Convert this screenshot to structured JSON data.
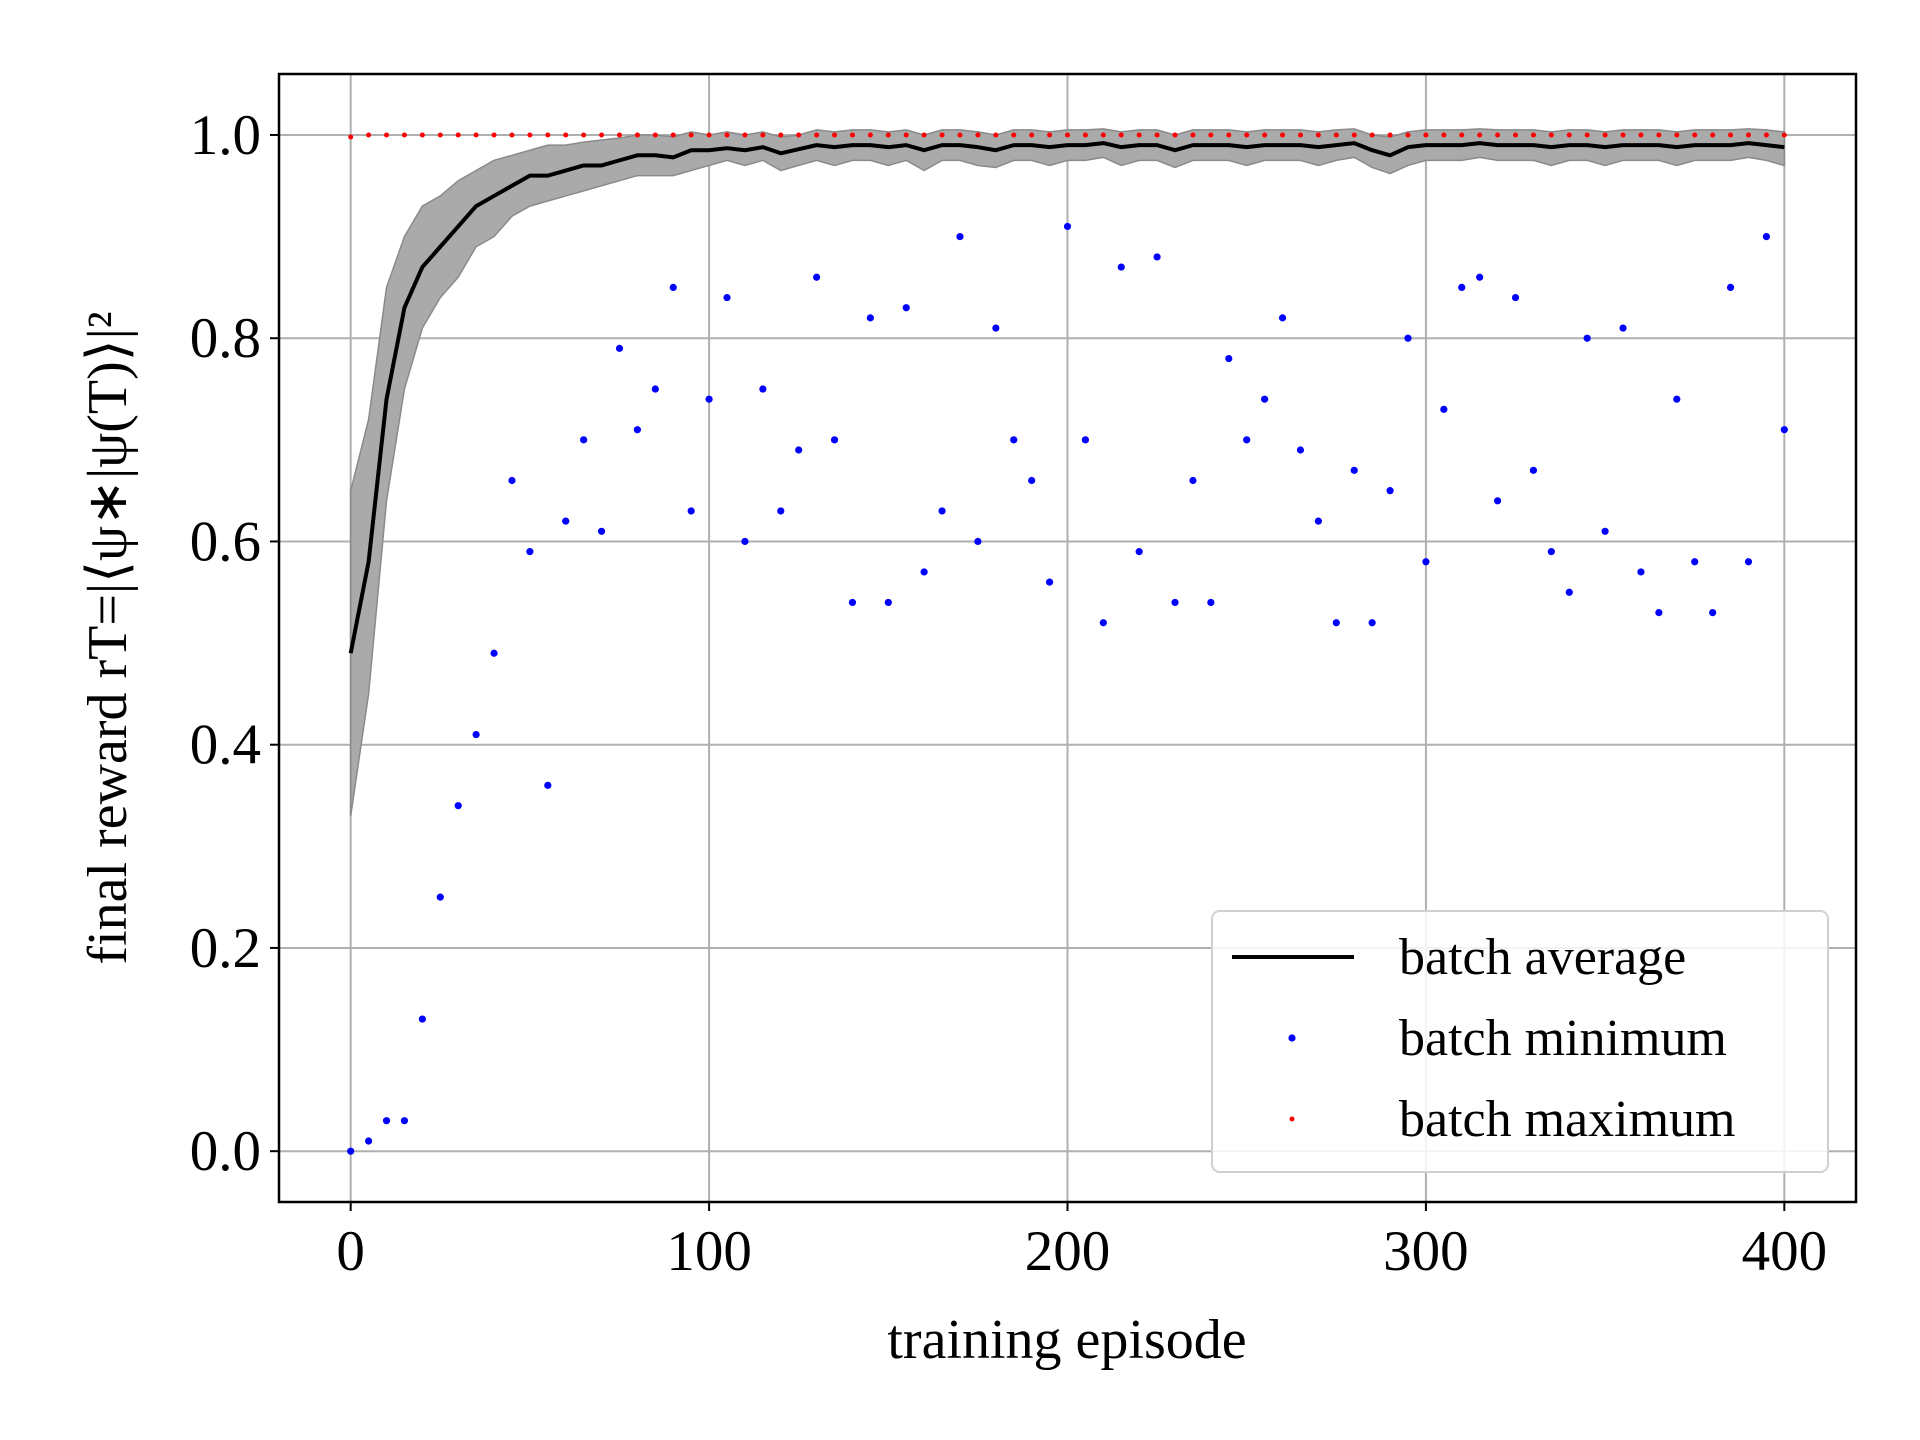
{
  "chart_data": {
    "type": "line",
    "xlabel": "training episode",
    "ylabel": "final reward rT=|⟨ψ∗|ψ(T)⟩|²",
    "xlim": [
      -20,
      420
    ],
    "ylim": [
      -0.05,
      1.06
    ],
    "xticks": [
      0,
      100,
      200,
      300,
      400
    ],
    "yticks": [
      {
        "value": 0,
        "label": "0.0"
      },
      0.2,
      0.4,
      0.6,
      0.8,
      {
        "value": 1,
        "label": "1.0"
      }
    ],
    "grid": true,
    "legend": "lower right",
    "x": [
      0,
      5,
      10,
      15,
      20,
      25,
      30,
      35,
      40,
      45,
      50,
      55,
      60,
      65,
      70,
      75,
      80,
      85,
      90,
      95,
      100,
      105,
      110,
      115,
      120,
      125,
      130,
      135,
      140,
      145,
      150,
      155,
      160,
      165,
      170,
      175,
      180,
      185,
      190,
      195,
      200,
      205,
      210,
      215,
      220,
      225,
      230,
      235,
      240,
      245,
      250,
      255,
      260,
      265,
      270,
      275,
      280,
      285,
      290,
      295,
      300,
      305,
      310,
      315,
      320,
      325,
      330,
      335,
      340,
      345,
      350,
      355,
      360,
      365,
      370,
      375,
      380,
      385,
      390,
      395,
      400
    ],
    "series": [
      {
        "name": "batch average",
        "color": "#000000",
        "values": [
          0.49,
          0.58,
          0.74,
          0.83,
          0.87,
          0.89,
          0.91,
          0.93,
          0.94,
          0.95,
          0.96,
          0.96,
          0.965,
          0.97,
          0.97,
          0.975,
          0.98,
          0.98,
          0.978,
          0.985,
          0.985,
          0.987,
          0.985,
          0.988,
          0.982,
          0.986,
          0.99,
          0.988,
          0.99,
          0.99,
          0.988,
          0.99,
          0.985,
          0.99,
          0.99,
          0.988,
          0.985,
          0.99,
          0.99,
          0.988,
          0.99,
          0.99,
          0.992,
          0.988,
          0.99,
          0.99,
          0.985,
          0.99,
          0.99,
          0.99,
          0.988,
          0.99,
          0.99,
          0.99,
          0.988,
          0.99,
          0.992,
          0.985,
          0.98,
          0.988,
          0.99,
          0.99,
          0.99,
          0.992,
          0.99,
          0.99,
          0.99,
          0.988,
          0.99,
          0.99,
          0.988,
          0.99,
          0.99,
          0.99,
          0.988,
          0.99,
          0.99,
          0.99,
          0.992,
          0.99,
          0.988
        ],
        "band_color": "#aaaaaa",
        "lower": [
          0.33,
          0.45,
          0.64,
          0.75,
          0.81,
          0.84,
          0.86,
          0.89,
          0.9,
          0.92,
          0.93,
          0.935,
          0.94,
          0.945,
          0.95,
          0.955,
          0.96,
          0.96,
          0.96,
          0.965,
          0.97,
          0.975,
          0.97,
          0.975,
          0.965,
          0.97,
          0.975,
          0.97,
          0.975,
          0.975,
          0.97,
          0.975,
          0.965,
          0.975,
          0.975,
          0.97,
          0.968,
          0.975,
          0.975,
          0.97,
          0.975,
          0.975,
          0.978,
          0.97,
          0.975,
          0.975,
          0.968,
          0.975,
          0.975,
          0.975,
          0.97,
          0.975,
          0.975,
          0.975,
          0.97,
          0.975,
          0.978,
          0.968,
          0.962,
          0.97,
          0.975,
          0.975,
          0.975,
          0.978,
          0.975,
          0.975,
          0.975,
          0.97,
          0.975,
          0.975,
          0.97,
          0.975,
          0.975,
          0.975,
          0.97,
          0.975,
          0.975,
          0.975,
          0.978,
          0.975,
          0.97
        ],
        "upper": [
          0.65,
          0.72,
          0.85,
          0.9,
          0.93,
          0.94,
          0.955,
          0.965,
          0.975,
          0.98,
          0.985,
          0.99,
          0.99,
          0.993,
          0.995,
          0.997,
          1.0,
          1.0,
          0.998,
          1.003,
          1.0,
          1.003,
          1.0,
          1.003,
          0.998,
          1.0,
          1.005,
          1.003,
          1.005,
          1.005,
          1.003,
          1.005,
          1.0,
          1.005,
          1.005,
          1.003,
          1.0,
          1.005,
          1.005,
          1.003,
          1.005,
          1.005,
          1.006,
          1.003,
          1.005,
          1.005,
          1.0,
          1.005,
          1.005,
          1.005,
          1.003,
          1.005,
          1.005,
          1.005,
          1.003,
          1.005,
          1.006,
          1.0,
          0.998,
          1.003,
          1.005,
          1.005,
          1.005,
          1.006,
          1.005,
          1.005,
          1.005,
          1.003,
          1.005,
          1.005,
          1.003,
          1.005,
          1.005,
          1.005,
          1.003,
          1.005,
          1.005,
          1.005,
          1.006,
          1.005,
          1.003
        ]
      },
      {
        "name": "batch minimum",
        "color": "#0000ff",
        "marker": "dot",
        "values": [
          0.0,
          0.01,
          0.03,
          0.03,
          0.13,
          0.25,
          0.34,
          0.41,
          0.49,
          0.66,
          0.59,
          0.36,
          0.62,
          0.7,
          0.61,
          0.79,
          0.71,
          0.75,
          0.85,
          0.63,
          0.74,
          0.84,
          0.6,
          0.75,
          0.63,
          0.69,
          0.86,
          0.7,
          0.54,
          0.82,
          0.54,
          0.83,
          0.57,
          0.63,
          0.9,
          0.6,
          0.81,
          0.7,
          0.66,
          0.56,
          0.91,
          0.7,
          0.52,
          0.87,
          0.59,
          0.88,
          0.54,
          0.66,
          0.54,
          0.78,
          0.7,
          0.74,
          0.82,
          0.69,
          0.62,
          0.52,
          0.67,
          0.52,
          0.65,
          0.8,
          0.58,
          0.73,
          0.85,
          0.86,
          0.64,
          0.84,
          0.67,
          0.59,
          0.55,
          0.8,
          0.61,
          0.81,
          0.57,
          0.53,
          0.74,
          0.58,
          0.53,
          0.85,
          0.58,
          0.9,
          0.71
        ]
      },
      {
        "name": "batch maximum",
        "color": "#ff0000",
        "marker": "dot",
        "values": [
          0.998,
          1.0,
          1.0,
          1.0,
          1.0,
          1.0,
          1.0,
          1.0,
          1.0,
          1.0,
          1.0,
          1.0,
          1.0,
          1.0,
          1.0,
          1.0,
          1.0,
          1.0,
          1.0,
          1.0,
          1.0,
          1.0,
          1.0,
          1.0,
          1.0,
          1.0,
          1.0,
          1.0,
          1.0,
          1.0,
          1.0,
          1.0,
          1.0,
          1.0,
          1.0,
          1.0,
          1.0,
          1.0,
          1.0,
          1.0,
          1.0,
          1.0,
          1.0,
          1.0,
          1.0,
          1.0,
          1.0,
          1.0,
          1.0,
          1.0,
          1.0,
          1.0,
          1.0,
          1.0,
          1.0,
          1.0,
          1.0,
          1.0,
          1.0,
          1.0,
          1.0,
          1.0,
          1.0,
          1.0,
          1.0,
          1.0,
          1.0,
          1.0,
          1.0,
          1.0,
          1.0,
          1.0,
          1.0,
          1.0,
          1.0,
          1.0,
          1.0,
          1.0,
          1.0,
          1.0,
          1.0
        ]
      }
    ]
  }
}
